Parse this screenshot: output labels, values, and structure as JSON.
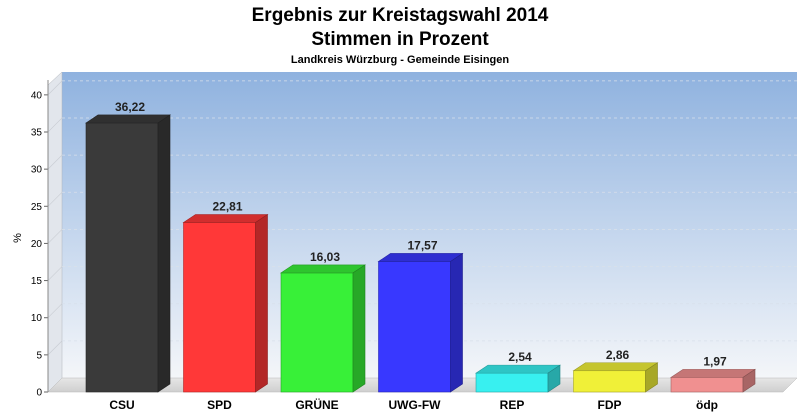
{
  "chart_data": {
    "type": "bar",
    "title": "Ergebnis zur Kreistagswahl 2014",
    "subtitle": "Stimmen in Prozent",
    "caption": "Landkreis Würzburg - Gemeinde Eisingen",
    "ylabel": "%",
    "ylim": [
      0,
      42
    ],
    "yticks": [
      0,
      5,
      10,
      15,
      20,
      25,
      30,
      35,
      40
    ],
    "categories": [
      "CSU",
      "SPD",
      "GRÜNE",
      "UWG-FW",
      "REP",
      "FDP",
      "ödp"
    ],
    "values": [
      36.22,
      22.81,
      16.03,
      17.57,
      2.54,
      2.86,
      1.97
    ],
    "value_labels": [
      "36,22",
      "22,81",
      "16,03",
      "17,57",
      "2,54",
      "2,86",
      "1,97"
    ],
    "colors": [
      "#3a3a3a",
      "#ff3838",
      "#38f038",
      "#3838ff",
      "#38f0f0",
      "#f0f038",
      "#f09090"
    ],
    "grid": true,
    "legend": "none"
  }
}
